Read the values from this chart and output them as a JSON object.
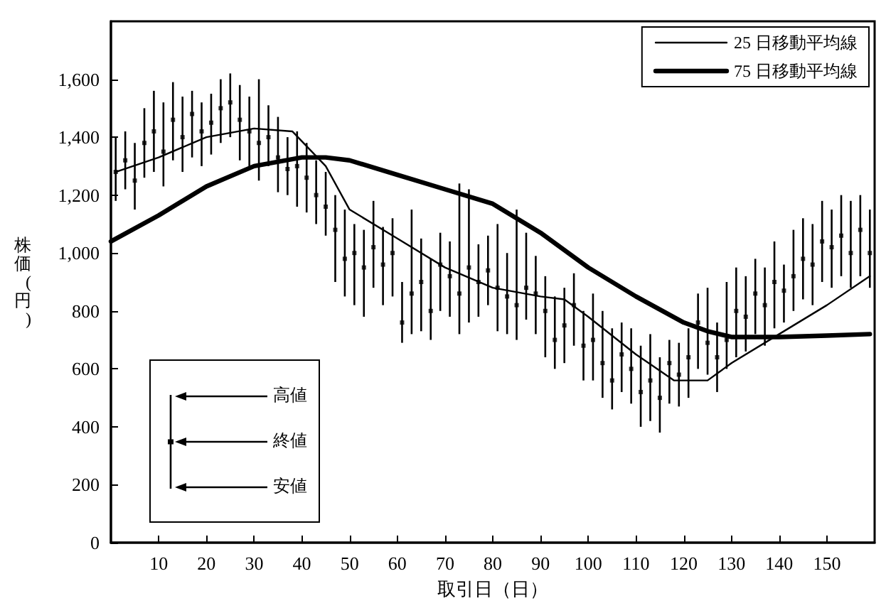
{
  "chart_data": {
    "type": "scatter",
    "xlabel": "取引日（日）",
    "ylabel": "株価(円)",
    "xlim": [
      0,
      160
    ],
    "xticks": [
      10,
      20,
      30,
      40,
      50,
      60,
      70,
      80,
      90,
      100,
      110,
      120,
      130,
      140,
      150
    ],
    "ylim": [
      0,
      1800
    ],
    "yticks": [
      0,
      200,
      400,
      600,
      800,
      {
        "value": 1000,
        "label": "1,000"
      },
      {
        "value": 1200,
        "label": "1,200"
      },
      {
        "value": 1400,
        "label": "1,400"
      },
      {
        "value": 1600,
        "label": "1,600"
      }
    ],
    "grid": false,
    "legend": "top right",
    "line_style": "solid",
    "annotations": [
      "高値",
      "終値",
      "安値"
    ],
    "series": [
      {
        "marker": "square",
        "color": "#000000",
        "x": [
          1,
          3,
          5,
          7,
          9,
          11,
          13,
          15,
          17,
          19,
          21,
          23,
          25,
          27,
          29,
          31,
          33,
          35,
          37,
          39,
          41,
          43,
          45,
          47,
          49,
          51,
          53,
          55,
          57,
          59,
          61,
          63,
          65,
          67,
          69,
          71,
          73,
          75,
          77,
          79,
          81,
          83,
          85,
          87,
          89,
          91,
          93,
          95,
          97,
          99,
          101,
          103,
          105,
          107,
          109,
          111,
          113,
          115,
          117,
          119,
          121,
          123,
          125,
          127,
          129,
          131,
          133,
          135,
          137,
          139,
          141,
          143,
          145,
          147,
          149,
          151,
          153,
          155,
          157,
          159
        ],
        "values": [
          1280,
          1320,
          1250,
          1380,
          1420,
          1350,
          1460,
          1400,
          1480,
          1420,
          1450,
          1500,
          1520,
          1460,
          1420,
          1380,
          1400,
          1330,
          1290,
          1300,
          1260,
          1200,
          1160,
          1080,
          980,
          1000,
          950,
          1020,
          960,
          1000,
          760,
          860,
          900,
          800,
          960,
          920,
          860,
          950,
          900,
          940,
          880,
          850,
          820,
          880,
          860,
          800,
          700,
          750,
          820,
          680,
          700,
          620,
          560,
          650,
          600,
          520,
          560,
          500,
          620,
          580,
          640,
          760,
          690,
          640,
          700,
          800,
          780,
          860,
          820,
          900,
          870,
          920,
          980,
          960,
          1040,
          1020,
          1060,
          1000,
          1080,
          1000
        ],
        "errors": [
          [
            1180,
            1400
          ],
          [
            1220,
            1420
          ],
          [
            1150,
            1380
          ],
          [
            1260,
            1500
          ],
          [
            1280,
            1560
          ],
          [
            1230,
            1520
          ],
          [
            1320,
            1590
          ],
          [
            1280,
            1540
          ],
          [
            1330,
            1560
          ],
          [
            1300,
            1520
          ],
          [
            1340,
            1550
          ],
          [
            1380,
            1600
          ],
          [
            1400,
            1620
          ],
          [
            1320,
            1580
          ],
          [
            1300,
            1540
          ],
          [
            1250,
            1600
          ],
          [
            1300,
            1510
          ],
          [
            1210,
            1470
          ],
          [
            1200,
            1400
          ],
          [
            1160,
            1420
          ],
          [
            1140,
            1380
          ],
          [
            1100,
            1320
          ],
          [
            1060,
            1280
          ],
          [
            900,
            1200
          ],
          [
            850,
            1150
          ],
          [
            820,
            1100
          ],
          [
            780,
            1080
          ],
          [
            880,
            1180
          ],
          [
            820,
            1090
          ],
          [
            850,
            1120
          ],
          [
            690,
            900
          ],
          [
            720,
            1150
          ],
          [
            730,
            1050
          ],
          [
            700,
            980
          ],
          [
            800,
            1070
          ],
          [
            780,
            1040
          ],
          [
            720,
            1240
          ],
          [
            760,
            1220
          ],
          [
            780,
            1030
          ],
          [
            820,
            1060
          ],
          [
            730,
            1100
          ],
          [
            720,
            1000
          ],
          [
            700,
            1150
          ],
          [
            770,
            1070
          ],
          [
            720,
            990
          ],
          [
            640,
            920
          ],
          [
            600,
            850
          ],
          [
            620,
            880
          ],
          [
            680,
            930
          ],
          [
            560,
            800
          ],
          [
            560,
            860
          ],
          [
            500,
            800
          ],
          [
            460,
            740
          ],
          [
            520,
            760
          ],
          [
            480,
            740
          ],
          [
            400,
            680
          ],
          [
            420,
            720
          ],
          [
            380,
            640
          ],
          [
            480,
            700
          ],
          [
            470,
            690
          ],
          [
            500,
            740
          ],
          [
            600,
            860
          ],
          [
            580,
            880
          ],
          [
            520,
            760
          ],
          [
            600,
            900
          ],
          [
            640,
            950
          ],
          [
            660,
            920
          ],
          [
            720,
            980
          ],
          [
            680,
            950
          ],
          [
            740,
            1040
          ],
          [
            760,
            960
          ],
          [
            800,
            1080
          ],
          [
            840,
            1120
          ],
          [
            820,
            1100
          ],
          [
            900,
            1180
          ],
          [
            880,
            1150
          ],
          [
            920,
            1200
          ],
          [
            880,
            1180
          ],
          [
            920,
            1200
          ],
          [
            880,
            1150
          ]
        ]
      },
      {
        "name": "25 日移動平均線",
        "type": "line",
        "color": "#000000",
        "x": [
          1,
          10,
          20,
          30,
          38,
          45,
          50,
          60,
          70,
          80,
          90,
          95,
          100,
          110,
          118,
          125,
          130,
          140,
          150,
          159
        ],
        "values": [
          1280,
          1330,
          1400,
          1430,
          1420,
          1300,
          1150,
          1050,
          950,
          880,
          850,
          840,
          780,
          650,
          560,
          560,
          620,
          720,
          820,
          920
        ]
      },
      {
        "name": "75 日移動平均線",
        "type": "line",
        "color": "#000000",
        "x": [
          0,
          10,
          20,
          30,
          40,
          45,
          50,
          60,
          70,
          80,
          90,
          100,
          110,
          120,
          125,
          130,
          140,
          150,
          159
        ],
        "values": [
          1040,
          1130,
          1230,
          1300,
          1330,
          1330,
          1320,
          1270,
          1220,
          1170,
          1070,
          950,
          850,
          760,
          730,
          710,
          710,
          715,
          720
        ]
      }
    ]
  }
}
